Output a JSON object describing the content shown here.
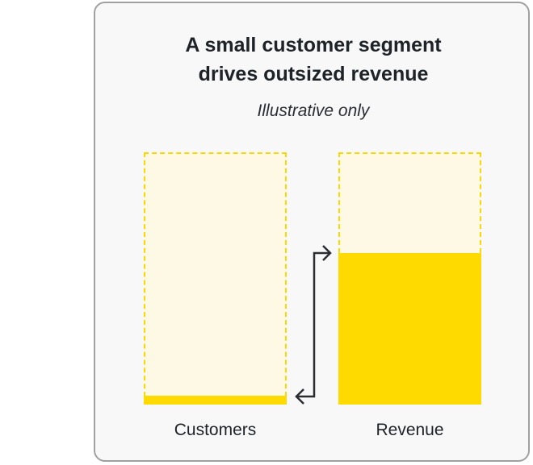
{
  "title_line1": "A small customer segment",
  "title_line2": "drives outsized revenue",
  "subtitle": "Illustrative only",
  "colors": {
    "fill": "#FFDA00",
    "background_fill": "#FEF9E4",
    "outline": "#FFD600"
  },
  "chart_data": {
    "type": "bar",
    "categories": [
      "Customers",
      "Revenue"
    ],
    "values": [
      3.5,
      60
    ],
    "unit": "percent of total (illustrative)",
    "ylim": [
      0,
      100
    ]
  }
}
